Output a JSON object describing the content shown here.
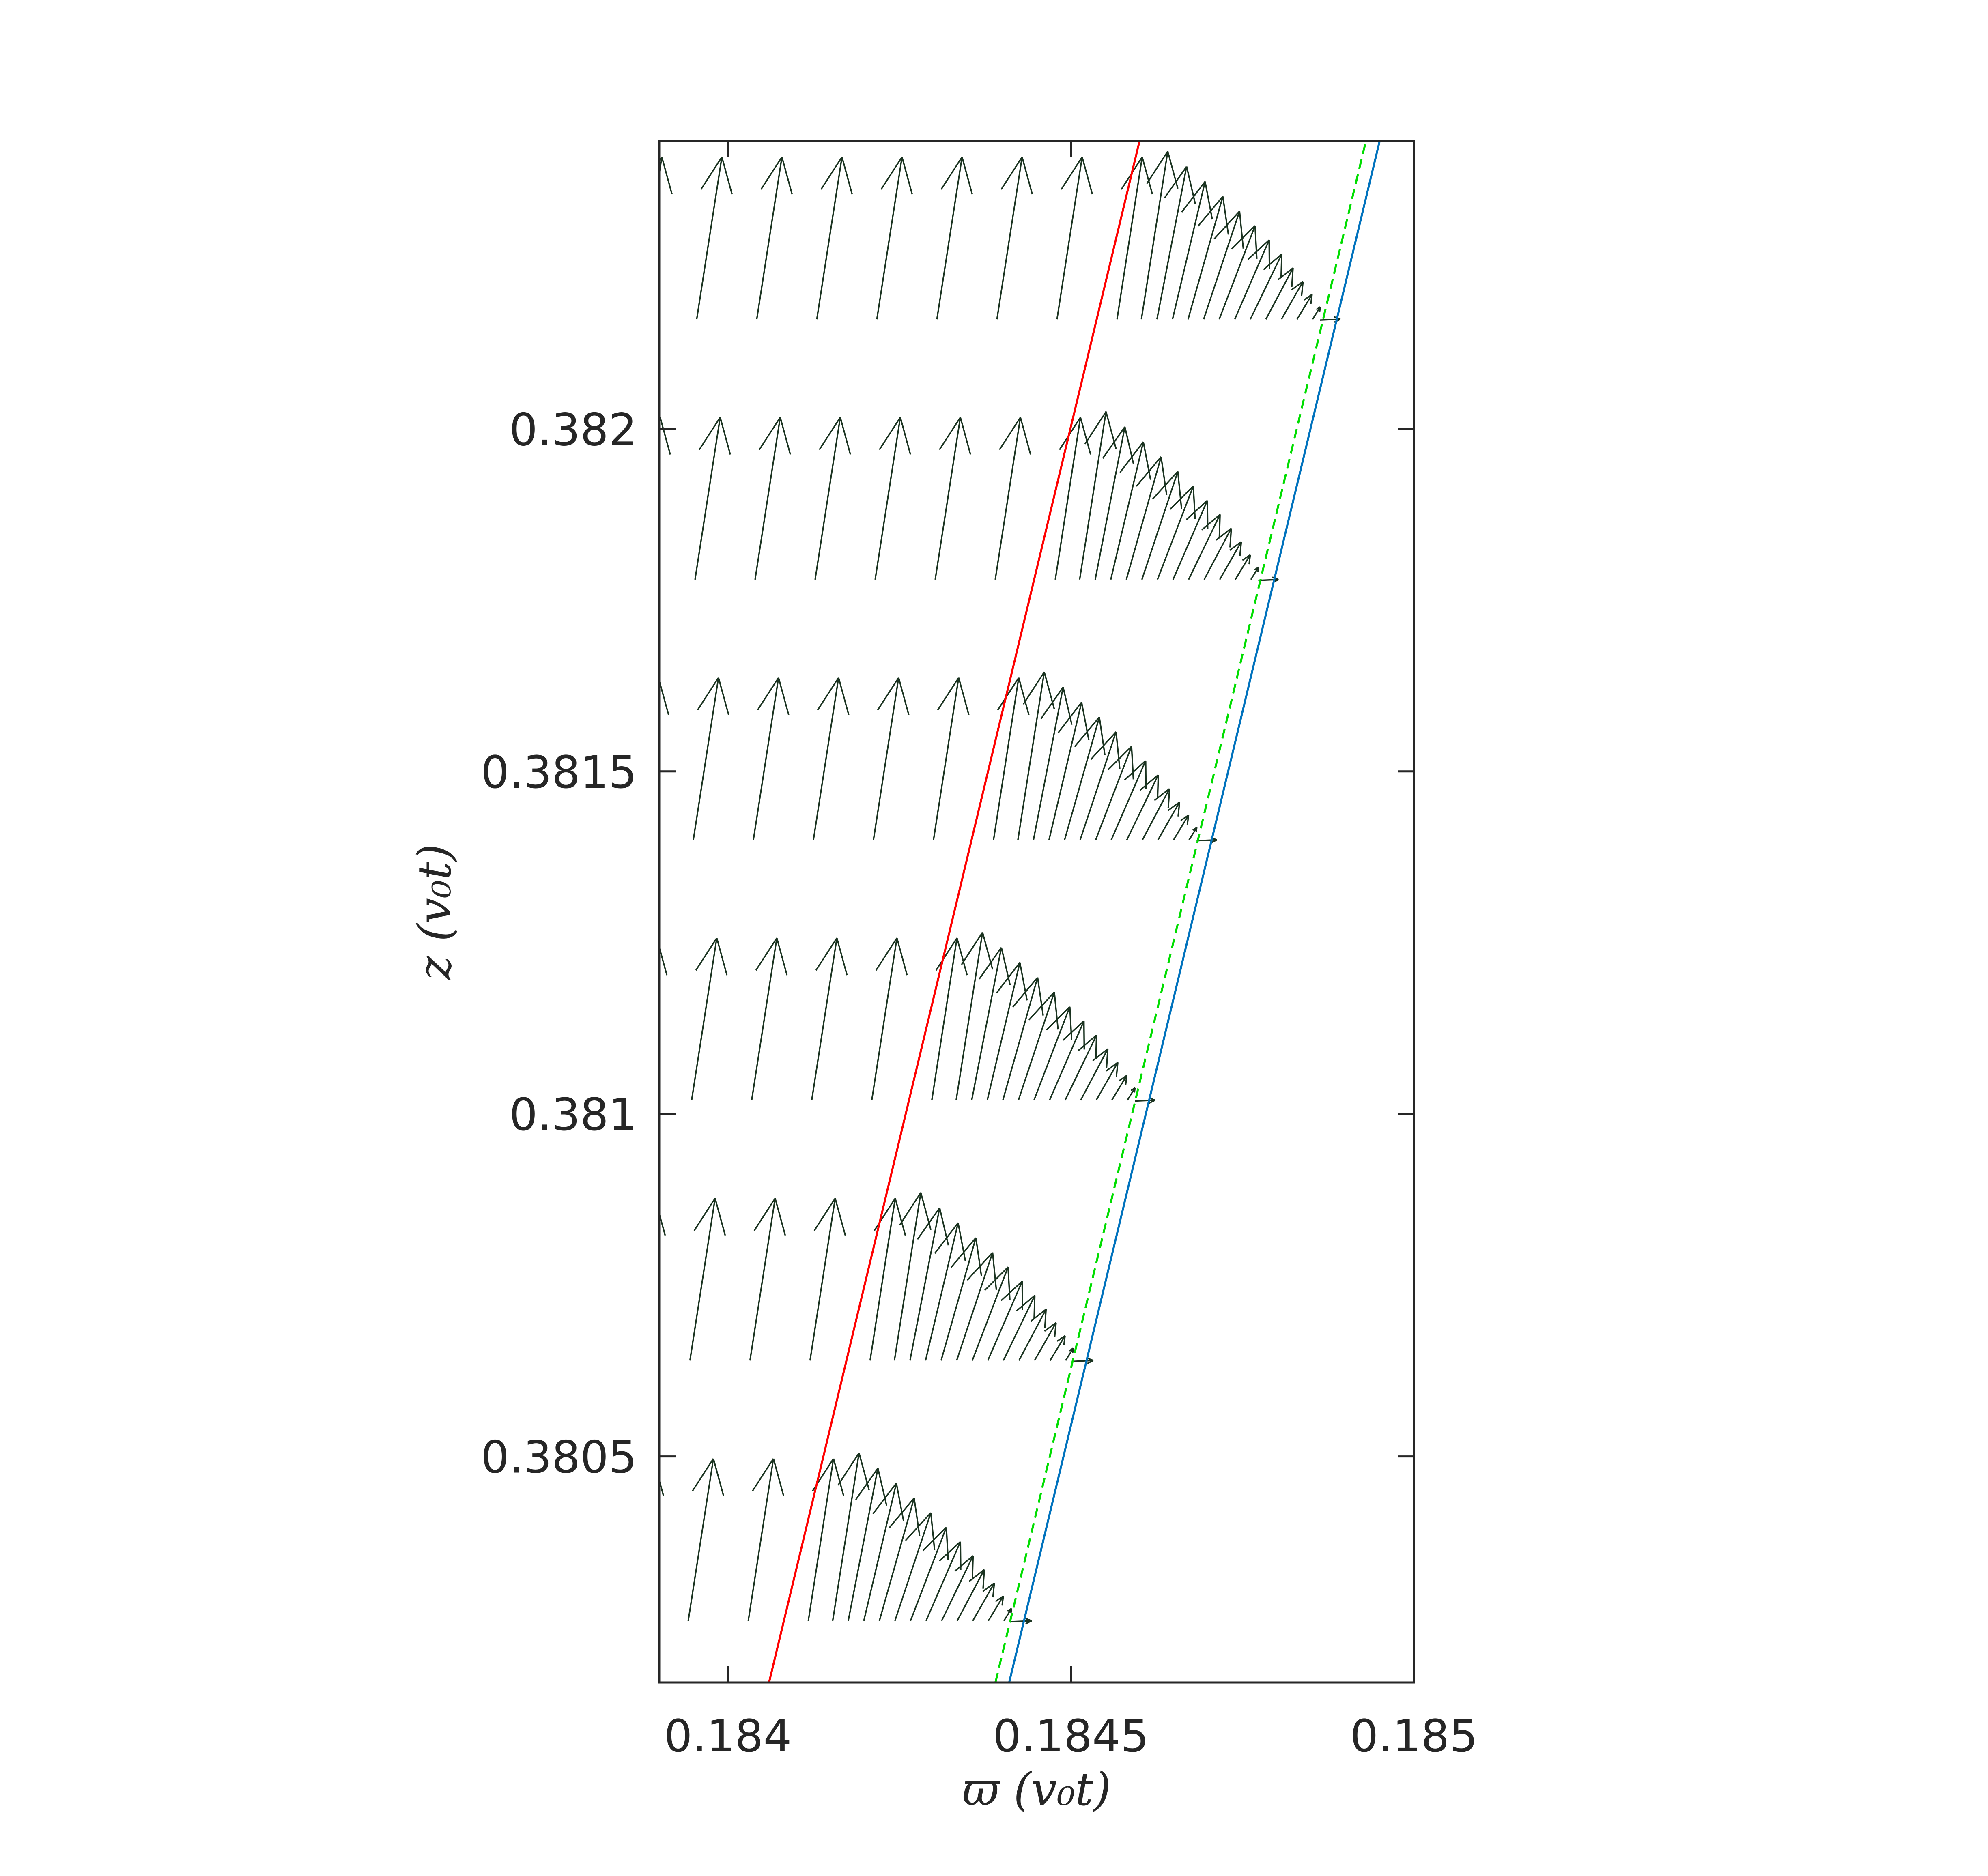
{
  "chart_data": {
    "type": "quiver",
    "title": "",
    "xlabel": "ϖ (v₀t)",
    "ylabel": "z (v₀t)",
    "xlim": [
      0.1839,
      0.185
    ],
    "ylim": [
      0.38017,
      0.38242
    ],
    "x_ticks": [
      0.184,
      0.1845,
      0.185
    ],
    "x_tick_labels": [
      "0.184",
      "0.1845",
      "0.185"
    ],
    "y_ticks": [
      0.3805,
      0.381,
      0.3815,
      0.382
    ],
    "y_tick_labels": [
      "0.3805",
      "0.381",
      "0.3815",
      "0.382"
    ],
    "grid": false,
    "lines": [
      {
        "color": "#ff0000",
        "style": "solid",
        "x": [
          0.18406,
          0.1846
        ],
        "y": [
          0.38017,
          0.38242
        ]
      },
      {
        "color": "#00dd00",
        "style": "dashed",
        "x": [
          0.18439,
          0.18493
        ],
        "y": [
          0.38017,
          0.38242
        ]
      },
      {
        "color": "#0072bd",
        "style": "solid",
        "x": [
          0.18441,
          0.18495
        ],
        "y": [
          0.38017,
          0.38242
        ]
      }
    ],
    "arrow_color": "#1a3320",
    "arrow_rows": [
      {
        "z": 0.38026,
        "red_x": 0.184135,
        "front_x": 0.184425
      },
      {
        "z": 0.38064,
        "red_x": 0.184225,
        "front_x": 0.184515
      },
      {
        "z": 0.38102,
        "red_x": 0.184315,
        "front_x": 0.184605
      },
      {
        "z": 0.3814,
        "red_x": 0.184405,
        "front_x": 0.184695
      },
      {
        "z": 0.38178,
        "red_x": 0.184495,
        "front_x": 0.184785
      },
      {
        "z": 0.38216,
        "red_x": 0.184585,
        "front_x": 0.184875
      }
    ]
  }
}
